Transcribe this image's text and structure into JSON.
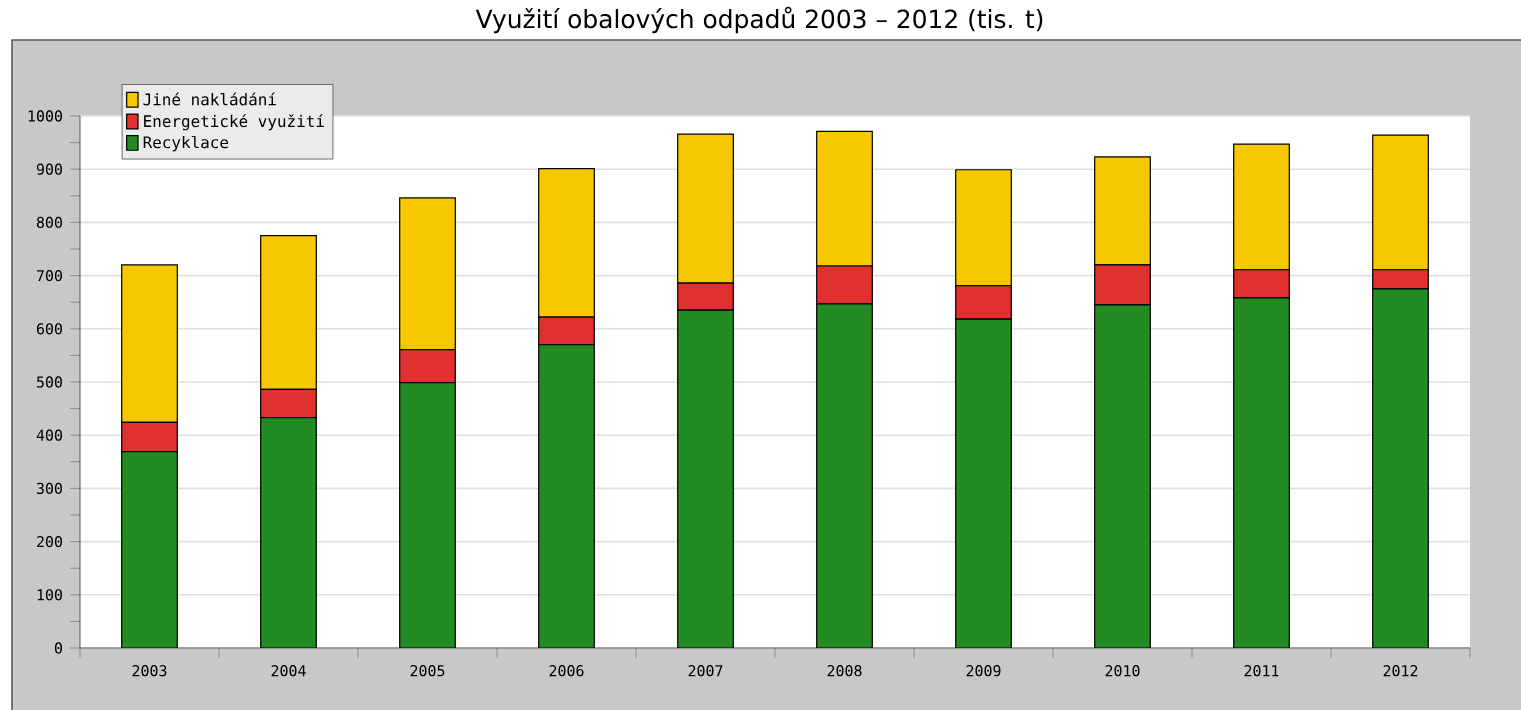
{
  "chart_data": {
    "type": "bar",
    "title": "Využití obalových odpadů 2003 – 2012 (tis. t)",
    "categories": [
      "2003",
      "2004",
      "2005",
      "2006",
      "2007",
      "2008",
      "2009",
      "2010",
      "2011",
      "2012"
    ],
    "series": [
      {
        "name": "Recyklace",
        "color": "#228b22",
        "values": [
          369,
          433,
          499,
          570,
          635,
          647,
          618,
          645,
          658,
          675
        ]
      },
      {
        "name": "Energetické využití",
        "color": "#e03030",
        "values": [
          55,
          53,
          62,
          52,
          51,
          71,
          63,
          75,
          53,
          36
        ]
      },
      {
        "name": "Jiné nakládání",
        "color": "#f7c800",
        "values": [
          296,
          289,
          285,
          279,
          280,
          253,
          218,
          203,
          236,
          253
        ]
      }
    ],
    "stacked": true,
    "ylim": [
      0,
      1000
    ],
    "yticks": [
      0,
      100,
      200,
      300,
      400,
      500,
      600,
      700,
      800,
      900,
      1000
    ],
    "grid": "y",
    "legend": "top left"
  }
}
